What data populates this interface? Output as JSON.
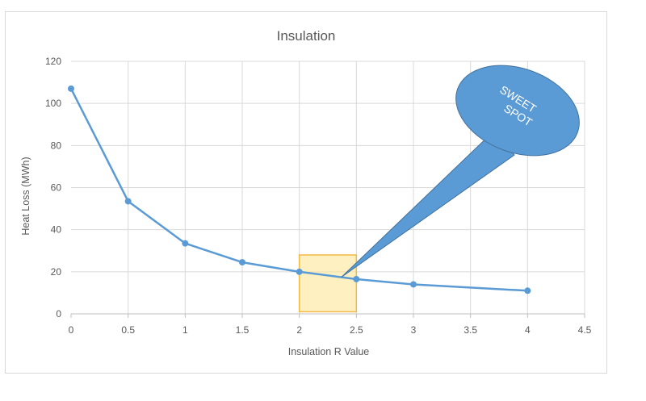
{
  "chart_data": {
    "type": "scatter",
    "title": "Insulation",
    "xlabel": "Insulation R Value",
    "ylabel": "Heat Loss (MWh)",
    "xlim": [
      0,
      4.5
    ],
    "ylim": [
      0,
      120
    ],
    "x_ticks": [
      "0",
      "0.5",
      "1",
      "1.5",
      "2",
      "2.5",
      "3",
      "3.5",
      "4",
      "4.5"
    ],
    "y_ticks": [
      "0",
      "20",
      "40",
      "60",
      "80",
      "100",
      "120"
    ],
    "grid": true,
    "legend": "none",
    "series": [
      {
        "color": "#5b9bd5",
        "points": [
          {
            "x": 0,
            "y": 107
          },
          {
            "x": 0.5,
            "y": 53.5
          },
          {
            "x": 1,
            "y": 33.5
          },
          {
            "x": 1.5,
            "y": 24.5
          },
          {
            "x": 2,
            "y": 20
          },
          {
            "x": 2.5,
            "y": 16.5
          },
          {
            "x": 3,
            "y": 14
          },
          {
            "x": 4,
            "y": 11
          }
        ]
      }
    ],
    "annotations": {
      "highlight_region": {
        "x": [
          2,
          2.5
        ],
        "y": [
          1,
          28
        ],
        "fill": "#ffe699",
        "stroke": "#f4b942"
      },
      "callout": {
        "lines": [
          "SWEET",
          "SPOT"
        ],
        "pointer": {
          "x": 2.37,
          "y": 17.5
        },
        "color": "#5b9bd5"
      }
    }
  }
}
